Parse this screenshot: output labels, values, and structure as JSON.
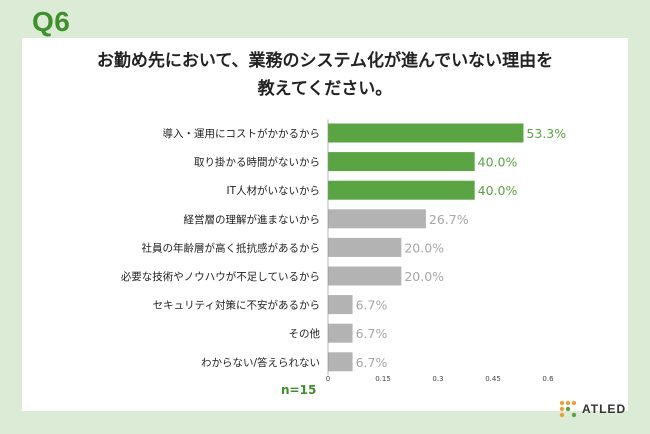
{
  "header": {
    "question_number": "Q6",
    "title_line1": "お勤め先において、業務のシステム化が進んでいない理由を",
    "title_line2": "教えてください。"
  },
  "footer": {
    "sample_size": "n=15",
    "logo_text": "ATLED"
  },
  "colors": {
    "highlight": "#5aa443",
    "highlight_text": "#5aa443",
    "muted": "#b3b3b3",
    "muted_text": "#a6a6a6",
    "background": "#dcebd5"
  },
  "chart_data": {
    "type": "bar",
    "orientation": "horizontal",
    "categories": [
      "導入・運用にコストがかかるから",
      "取り掛かる時間がないから",
      "IT人材がいないから",
      "経営層の理解が進まないから",
      "社員の年齢層が高く抵抗感があるから",
      "必要な技術やノウハウが不足しているから",
      "セキュリティ対策に不安があるから",
      "その他",
      "わからない/答えられない"
    ],
    "values": [
      0.533,
      0.4,
      0.4,
      0.267,
      0.2,
      0.2,
      0.067,
      0.067,
      0.067
    ],
    "value_labels": [
      "53.3%",
      "40.0%",
      "40.0%",
      "26.7%",
      "20.0%",
      "20.0%",
      "6.7%",
      "6.7%",
      "6.7%"
    ],
    "highlighted": [
      true,
      true,
      true,
      false,
      false,
      false,
      false,
      false,
      false
    ],
    "xlim": [
      0,
      0.6
    ],
    "xticks": [
      0,
      0.15,
      0.3,
      0.45,
      0.6
    ],
    "xtick_labels": [
      "0",
      "0.15",
      "0.3",
      "0.45",
      "0.6"
    ],
    "grid": false,
    "legend": "none"
  }
}
